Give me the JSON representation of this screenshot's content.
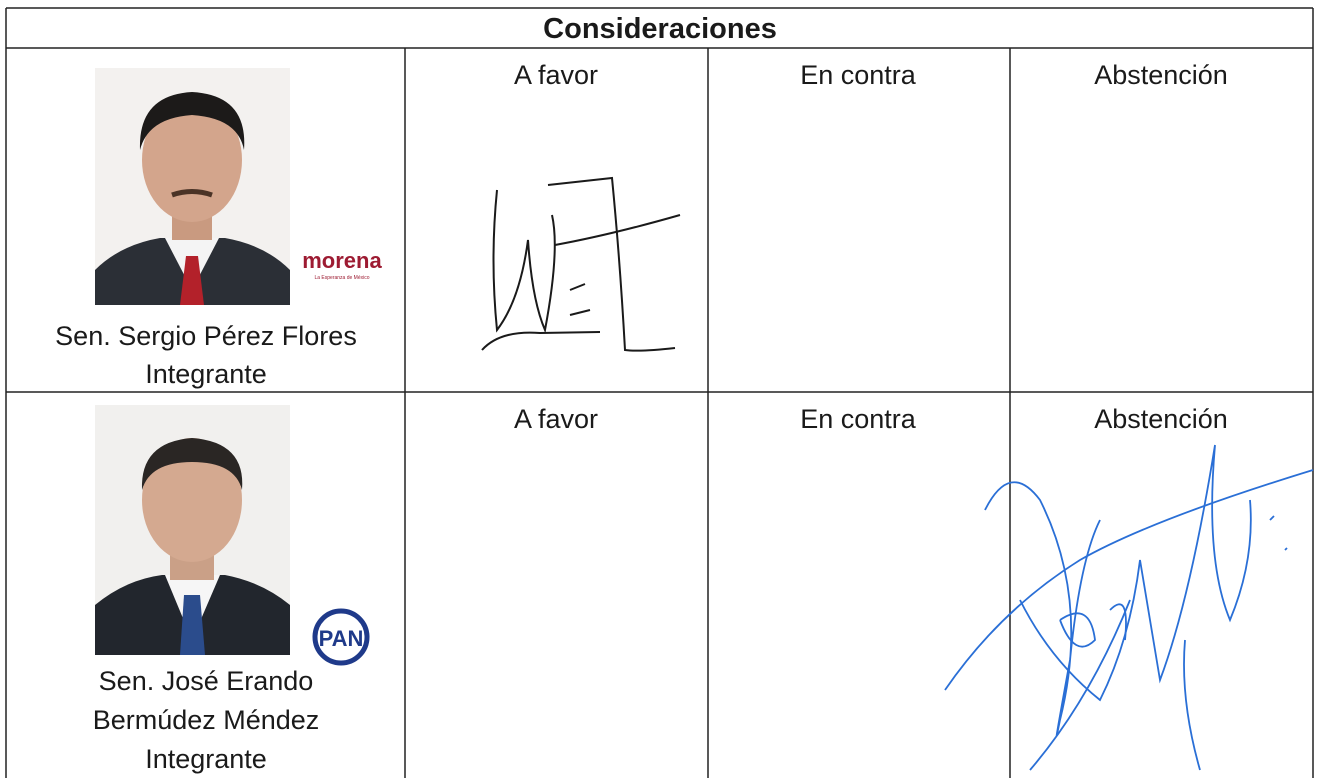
{
  "header": {
    "title": "Consideraciones"
  },
  "rows": [
    {
      "name_lines": [
        "Sen. Sergio Pérez Flores",
        "Integrante"
      ],
      "party": {
        "name": "morena",
        "tagline": "La Esperanza de México"
      },
      "votes": [
        "A favor",
        "En contra",
        "Abstención"
      ]
    },
    {
      "name_lines": [
        "Sen. José Erando",
        "Bermúdez Méndez",
        "Integrante"
      ],
      "party": {
        "name": "PAN"
      },
      "votes": [
        "A favor",
        "En contra",
        "Abstención"
      ]
    }
  ]
}
